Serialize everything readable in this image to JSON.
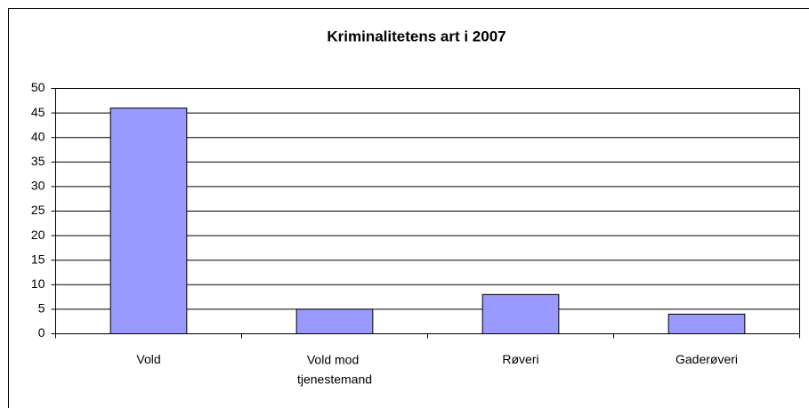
{
  "chart_data": {
    "type": "bar",
    "title": "Kriminalitetens art i 2007",
    "categories": [
      "Vold",
      "Vold mod tjenestemand",
      "Røveri",
      "Gaderøveri"
    ],
    "values": [
      46,
      5,
      8,
      4
    ],
    "color": "#9999ff",
    "ylim": [
      0,
      50
    ],
    "yticks": [
      0,
      5,
      10,
      15,
      20,
      25,
      30,
      35,
      40,
      45,
      50
    ],
    "grid": true
  }
}
